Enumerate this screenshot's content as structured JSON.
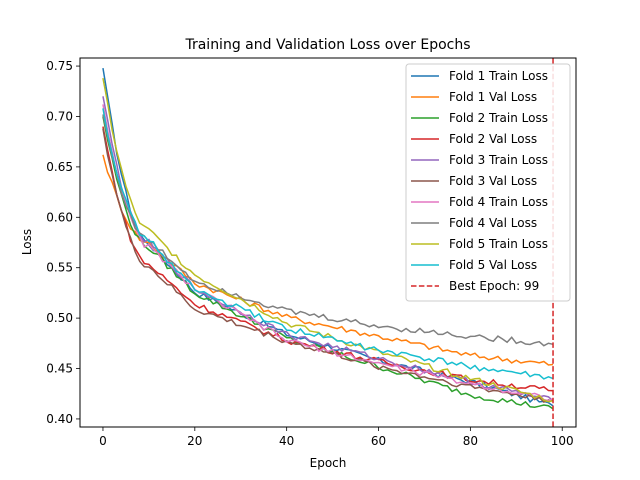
{
  "chart_data": {
    "type": "line",
    "title": "Training and Validation Loss over Epochs",
    "xlabel": "Epoch",
    "ylabel": "Loss",
    "xlim": [
      -5,
      103
    ],
    "ylim": [
      0.392,
      0.758
    ],
    "xticks": [
      0,
      20,
      40,
      60,
      80,
      100
    ],
    "yticks": [
      0.4,
      0.45,
      0.5,
      0.55,
      0.6,
      0.65,
      0.7,
      0.75
    ],
    "grid": false,
    "legend_position": "top-right",
    "epochs": 99,
    "series": [
      {
        "name": "Fold 1 Train Loss",
        "color": "#1f77b4",
        "start": 0.748,
        "end": 0.413,
        "e10": 0.574,
        "e20": 0.526,
        "e40": 0.484,
        "e60": 0.458,
        "e80": 0.437
      },
      {
        "name": "Fold 1 Val Loss",
        "color": "#ff7f0e",
        "start": 0.662,
        "end": 0.454,
        "e10": 0.574,
        "e20": 0.535,
        "e40": 0.501,
        "e60": 0.482,
        "e80": 0.463
      },
      {
        "name": "Fold 2 Train Loss",
        "color": "#2ca02c",
        "start": 0.7,
        "end": 0.41,
        "e10": 0.57,
        "e20": 0.525,
        "e40": 0.48,
        "e60": 0.452,
        "e80": 0.424
      },
      {
        "name": "Fold 2 Val Loss",
        "color": "#d62728",
        "start": 0.69,
        "end": 0.428,
        "e10": 0.553,
        "e20": 0.514,
        "e40": 0.478,
        "e60": 0.457,
        "e80": 0.439
      },
      {
        "name": "Fold 3 Train Loss",
        "color": "#9467bd",
        "start": 0.72,
        "end": 0.418,
        "e10": 0.575,
        "e20": 0.529,
        "e40": 0.484,
        "e60": 0.46,
        "e80": 0.437
      },
      {
        "name": "Fold 3 Val Loss",
        "color": "#8c564b",
        "start": 0.688,
        "end": 0.418,
        "e10": 0.551,
        "e20": 0.509,
        "e40": 0.477,
        "e60": 0.452,
        "e80": 0.432
      },
      {
        "name": "Fold 4 Train Loss",
        "color": "#e377c2",
        "start": 0.712,
        "end": 0.42,
        "e10": 0.571,
        "e20": 0.529,
        "e40": 0.478,
        "e60": 0.455,
        "e80": 0.435
      },
      {
        "name": "Fold 4 Val Loss",
        "color": "#7f7f7f",
        "start": 0.702,
        "end": 0.474,
        "e10": 0.577,
        "e20": 0.537,
        "e40": 0.507,
        "e60": 0.492,
        "e80": 0.482
      },
      {
        "name": "Fold 5 Train Loss",
        "color": "#bcbd22",
        "start": 0.738,
        "end": 0.418,
        "e10": 0.587,
        "e20": 0.543,
        "e40": 0.495,
        "e60": 0.466,
        "e80": 0.44
      },
      {
        "name": "Fold 5 Val Loss",
        "color": "#17becf",
        "start": 0.708,
        "end": 0.44,
        "e10": 0.578,
        "e20": 0.528,
        "e40": 0.49,
        "e60": 0.468,
        "e80": 0.452
      }
    ],
    "reference_line": {
      "name": "Best Epoch: 99",
      "x": 98,
      "color": "#d62728",
      "style": "dashed"
    }
  }
}
